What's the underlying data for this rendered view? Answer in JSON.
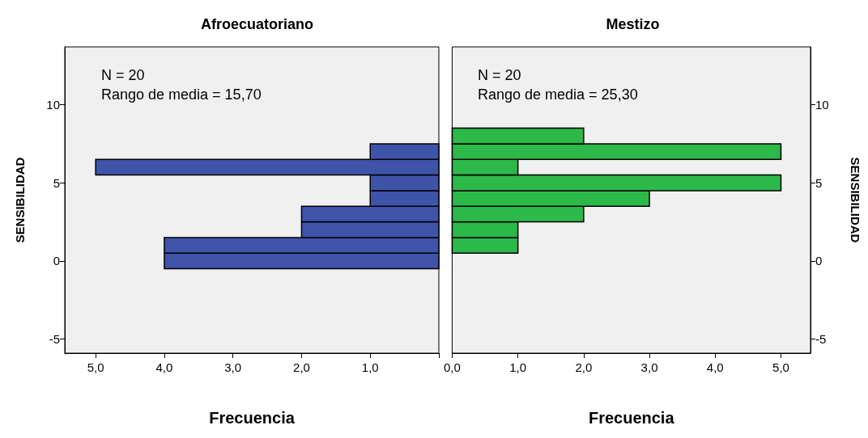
{
  "chart_data": [
    {
      "type": "histogram",
      "orientation": "horizontal",
      "title": "Afroecuatoriano",
      "xlabel": "Frecuencia",
      "ylabel": "SENSIBILIDAD",
      "annotations": [
        "N = 20",
        "Rango de media = 15,70"
      ],
      "bins": [
        -0.5,
        0.5,
        1.5,
        2.5,
        3.5,
        4.5,
        5.5,
        6.5,
        7.5,
        8.5
      ],
      "values": [
        4,
        4,
        2,
        2,
        1,
        1,
        5,
        1,
        0
      ],
      "color": "#3f53a9",
      "xlim": [
        5.45,
        0
      ],
      "xticks": [
        {
          "value": 5,
          "label": "5,0"
        },
        {
          "value": 4,
          "label": "4,0"
        },
        {
          "value": 3,
          "label": "3,0"
        },
        {
          "value": 2,
          "label": "2,0"
        },
        {
          "value": 1,
          "label": "1,0"
        },
        {
          "value": 0,
          "label": null
        }
      ],
      "ylim": [
        -5.9,
        13.7
      ],
      "yticks": [
        -5,
        0,
        5,
        10
      ]
    },
    {
      "type": "histogram",
      "orientation": "horizontal",
      "title": "Mestizo",
      "xlabel": "Frecuencia",
      "ylabel": "SENSIBILIDAD",
      "annotations": [
        "N = 20",
        "Rango de media = 25,30"
      ],
      "bins": [
        -0.5,
        0.5,
        1.5,
        2.5,
        3.5,
        4.5,
        5.5,
        6.5,
        7.5,
        8.5
      ],
      "values": [
        0,
        1,
        1,
        2,
        3,
        5,
        1,
        5,
        2
      ],
      "color": "#2db84a",
      "xlim": [
        0,
        5.45
      ],
      "xticks": [
        {
          "value": 0,
          "label": "0,0"
        },
        {
          "value": 1,
          "label": "1,0"
        },
        {
          "value": 2,
          "label": "2,0"
        },
        {
          "value": 3,
          "label": "3,0"
        },
        {
          "value": 4,
          "label": "4,0"
        },
        {
          "value": 5,
          "label": "5,0"
        }
      ],
      "ylim": [
        -5.9,
        13.7
      ],
      "yticks": [
        -5,
        0,
        5,
        10
      ]
    }
  ]
}
